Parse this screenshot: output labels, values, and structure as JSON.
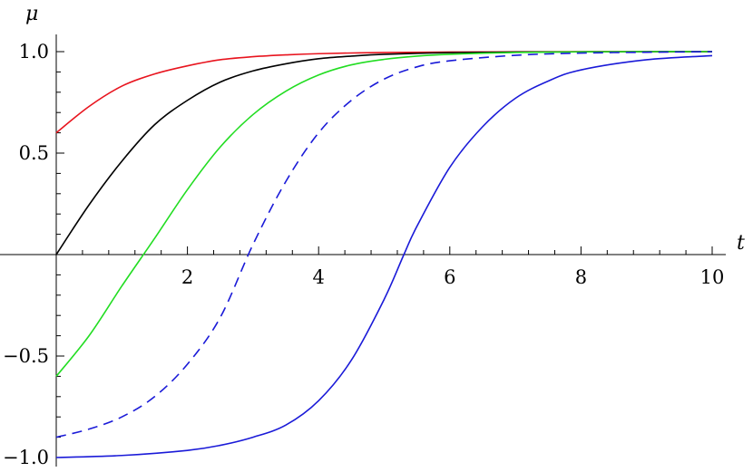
{
  "chart_data": {
    "type": "line",
    "xlabel": "t",
    "ylabel": "μ",
    "xlim": [
      0,
      10
    ],
    "ylim": [
      -1.0,
      1.0
    ],
    "x_ticks": [
      2,
      4,
      6,
      8,
      10
    ],
    "x_tick_labels": [
      "2",
      "4",
      "6",
      "8",
      "10"
    ],
    "y_ticks": [
      -1.0,
      -0.5,
      0.5,
      1.0
    ],
    "y_tick_labels": [
      "-1.0",
      "-0.5",
      "0.5",
      "1.0"
    ],
    "grid": false,
    "series": [
      {
        "color": "#e8141e",
        "dash": "solid",
        "x": [
          0,
          0.5,
          1,
          1.5,
          2,
          2.5,
          3,
          3.5,
          4,
          5,
          6,
          7,
          8,
          9,
          10
        ],
        "y": [
          0.6,
          0.73,
          0.83,
          0.89,
          0.93,
          0.96,
          0.975,
          0.984,
          0.99,
          0.996,
          0.998,
          0.999,
          1.0,
          1.0,
          1.0
        ]
      },
      {
        "color": "#000000",
        "dash": "solid",
        "x": [
          0,
          0.5,
          1,
          1.5,
          2,
          2.5,
          3,
          3.5,
          4,
          4.5,
          5,
          6,
          7,
          8,
          9,
          10
        ],
        "y": [
          0.0,
          0.245,
          0.46,
          0.64,
          0.76,
          0.85,
          0.905,
          0.94,
          0.965,
          0.978,
          0.987,
          0.995,
          0.998,
          0.999,
          1.0,
          1.0
        ]
      },
      {
        "color": "#22dd22",
        "dash": "solid",
        "x": [
          0,
          0.5,
          1,
          1.5,
          2,
          2.5,
          3,
          3.5,
          4,
          4.5,
          5,
          5.5,
          6,
          7,
          8,
          9,
          10
        ],
        "y": [
          -0.6,
          -0.4,
          -0.155,
          0.08,
          0.32,
          0.53,
          0.69,
          0.805,
          0.885,
          0.935,
          0.962,
          0.978,
          0.987,
          0.996,
          0.999,
          1.0,
          1.0
        ]
      },
      {
        "color": "#1a1ad8",
        "dash": "dashed",
        "x": [
          0,
          0.5,
          1,
          1.5,
          2,
          2.5,
          3,
          3.5,
          4,
          4.5,
          5,
          5.5,
          6,
          7,
          8,
          9,
          10
        ],
        "y": [
          -0.9,
          -0.86,
          -0.8,
          -0.7,
          -0.54,
          -0.31,
          0.05,
          0.36,
          0.6,
          0.76,
          0.865,
          0.925,
          0.955,
          0.982,
          0.993,
          0.997,
          1.0
        ]
      },
      {
        "color": "#1a1ad8",
        "dash": "solid",
        "x": [
          0,
          1,
          2,
          2.5,
          3,
          3.5,
          4,
          4.5,
          5,
          5.3,
          5.5,
          6,
          6.5,
          7,
          7.5,
          8,
          9,
          10
        ],
        "y": [
          -1.0,
          -0.99,
          -0.965,
          -0.94,
          -0.9,
          -0.84,
          -0.72,
          -0.52,
          -0.22,
          0.0,
          0.14,
          0.43,
          0.63,
          0.77,
          0.855,
          0.91,
          0.96,
          0.98
        ]
      }
    ]
  }
}
